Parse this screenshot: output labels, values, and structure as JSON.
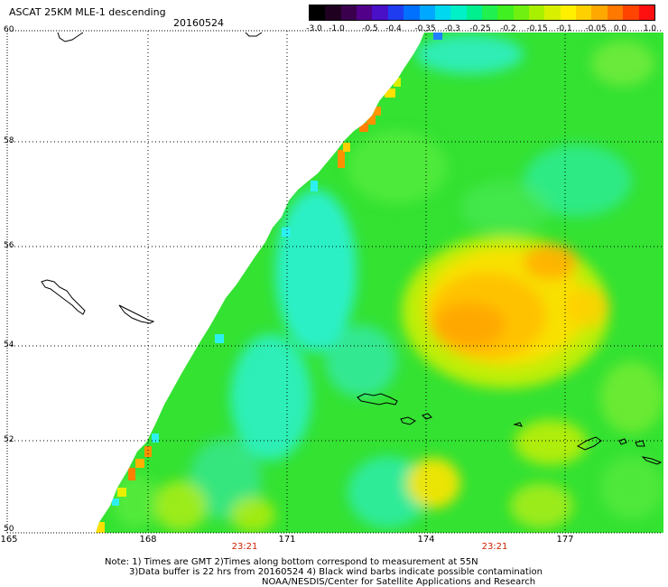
{
  "header": {
    "title": "ASCAT 25KM MLE-1 descending",
    "date": "20160524"
  },
  "colorbar": {
    "labels": [
      "-3.0",
      "-1.0",
      "-0.5",
      "-0.4",
      "-0.35",
      "-0.3",
      "-0.25",
      "-0.2",
      "-0.15",
      "-0.1",
      "-0.05",
      "0.0",
      "1.0"
    ],
    "colors": [
      "#000000",
      "#200020",
      "#3a004e",
      "#52008a",
      "#4a10c8",
      "#1f3cf0",
      "#0070ff",
      "#00a8ff",
      "#00d8f0",
      "#00f0c8",
      "#00f090",
      "#20f050",
      "#40f020",
      "#70f010",
      "#a8f000",
      "#d8f000",
      "#fff000",
      "#ffd000",
      "#ffa800",
      "#ff7800",
      "#ff4400",
      "#ff1010"
    ]
  },
  "axes": {
    "lat_labels": [
      "60",
      "58",
      "56",
      "54",
      "52",
      "50"
    ],
    "lon_labels": [
      "165",
      "168",
      "171",
      "174",
      "177"
    ],
    "time_labels": [
      "23:21",
      "23:21"
    ]
  },
  "notes": {
    "line1": "Note: 1) Times are GMT 2)Times along bottom correspond to measurement at 55N",
    "line2": "3)Data buffer is 22 hrs from 20160524 4) Black wind barbs indicate possible contamination",
    "line3": "NOAA/NESDIS/Center for Satellite Applications and Research"
  },
  "style": {
    "swath_base": "#34e232",
    "grid_color": "#000000",
    "coast_color": "#000000",
    "time_color": "#cc2200"
  }
}
